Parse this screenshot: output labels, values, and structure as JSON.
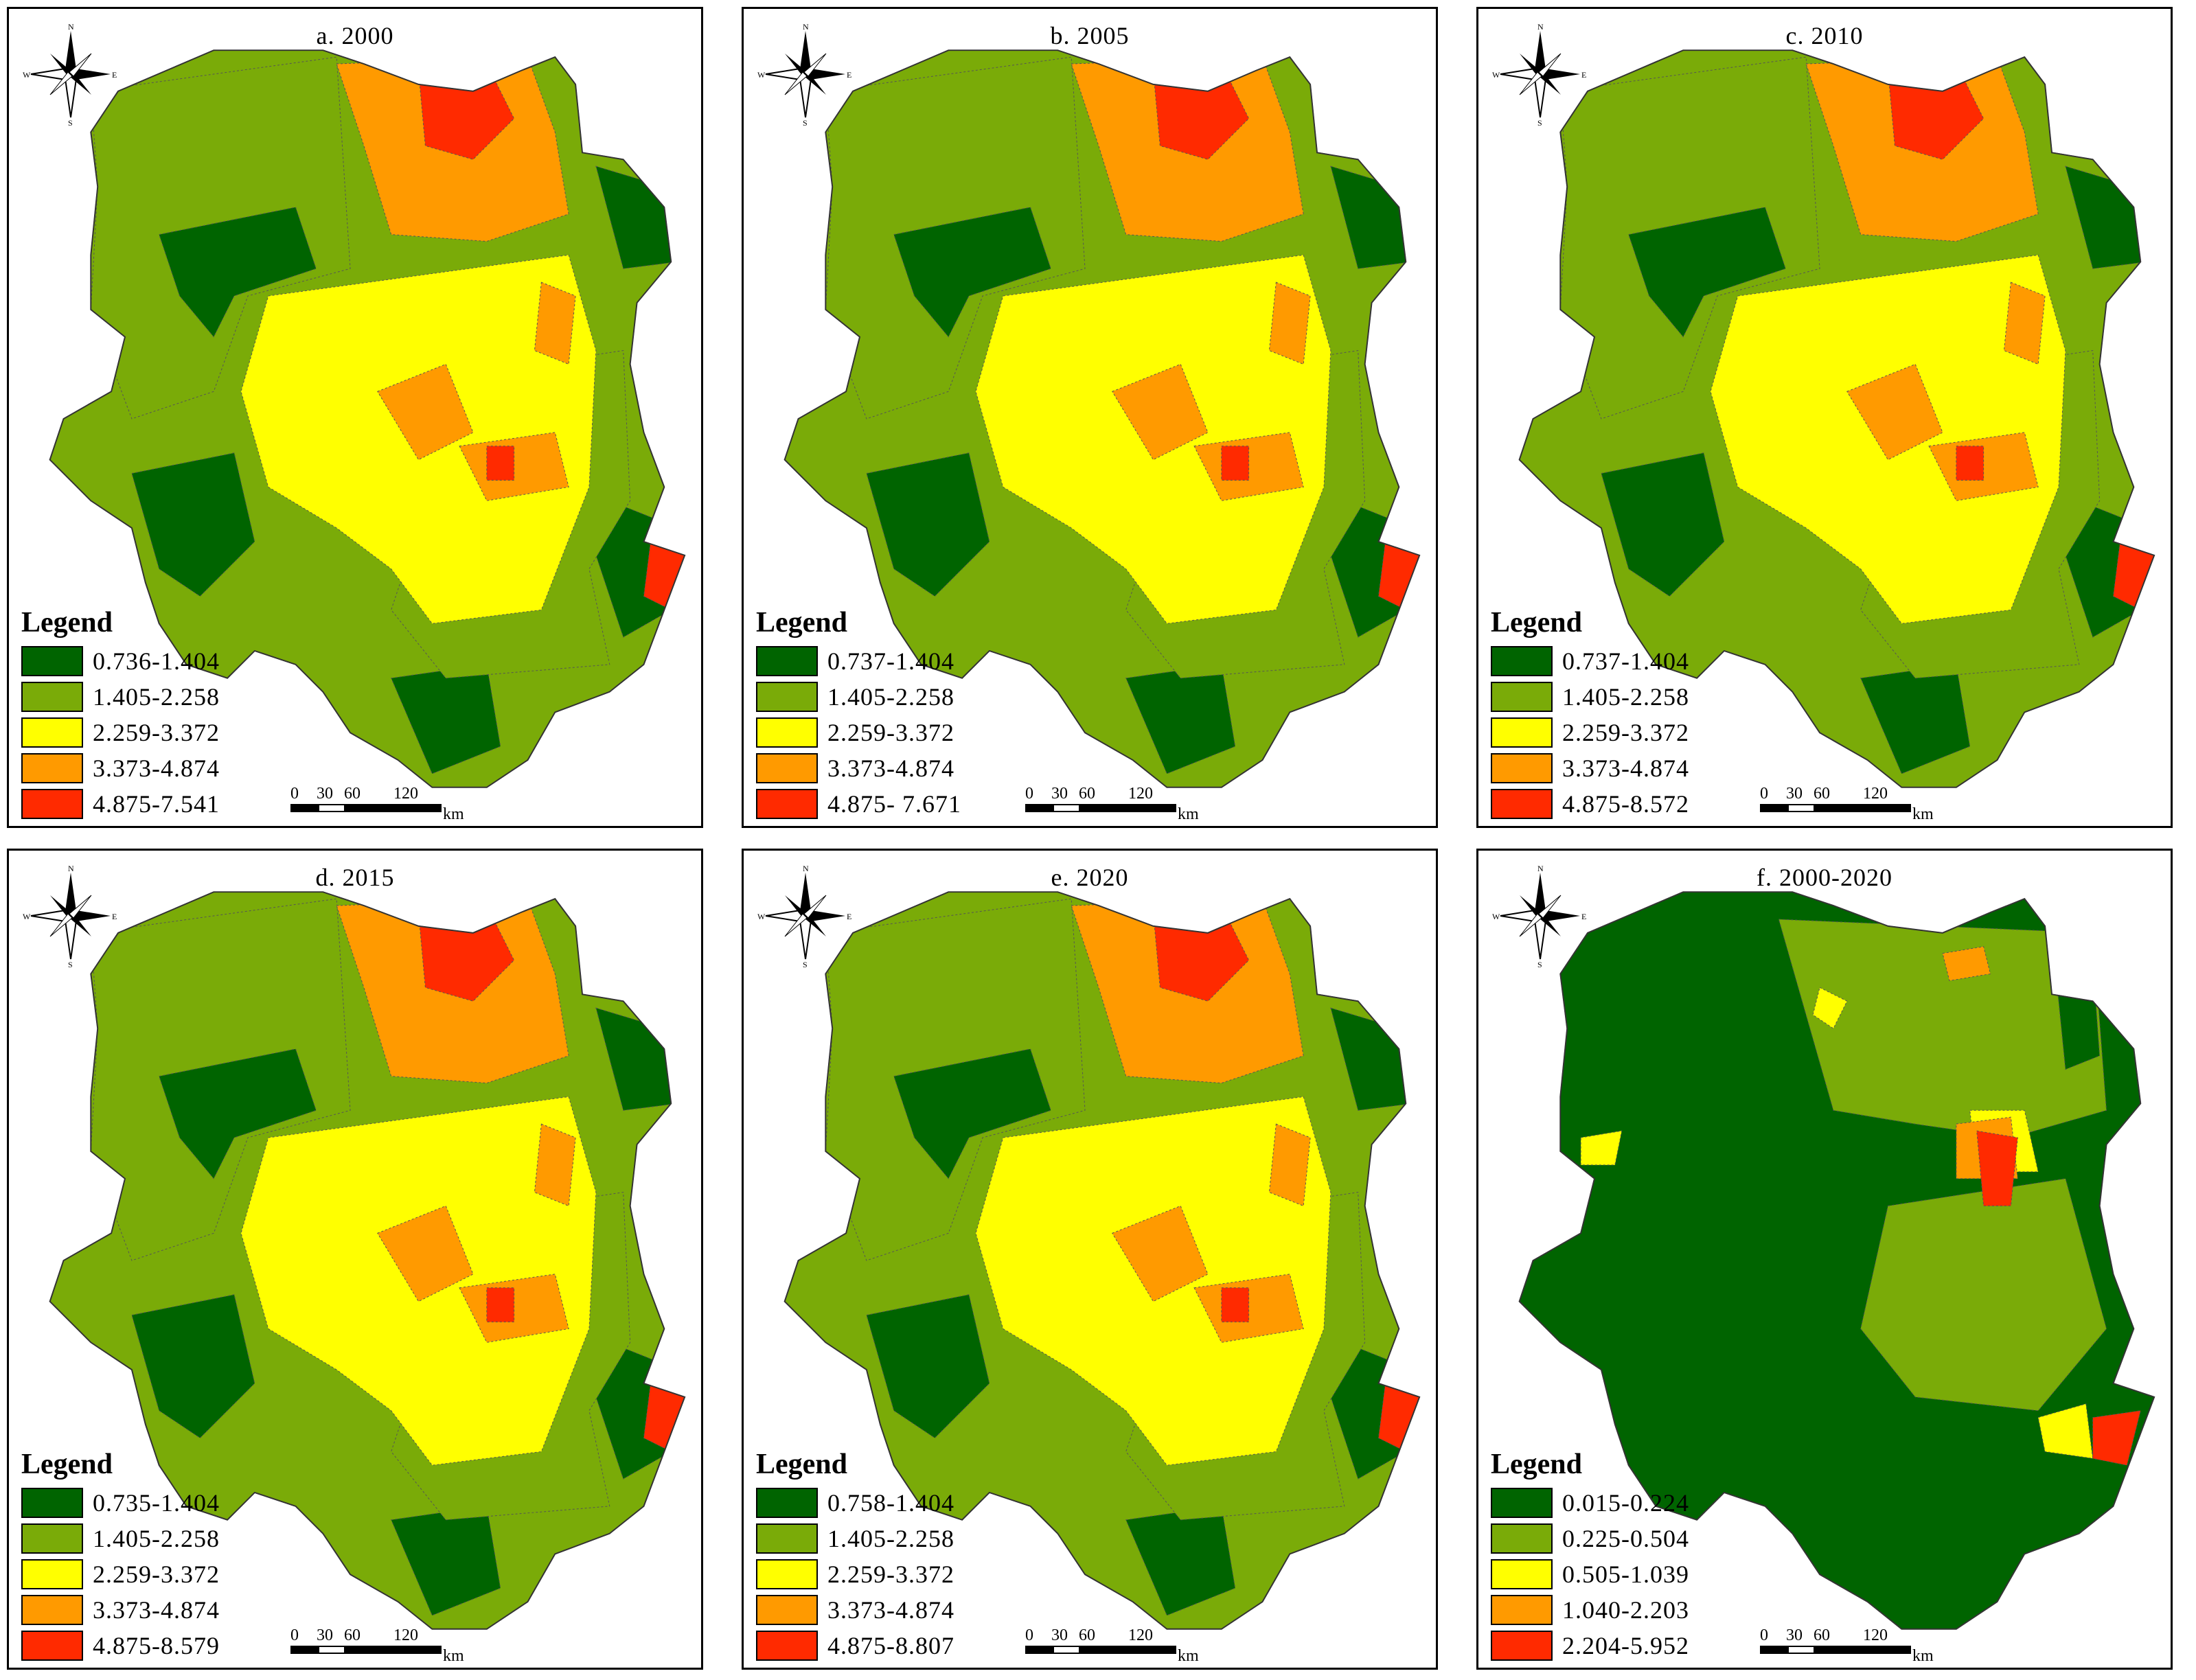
{
  "legend_title": "Legend",
  "scale": {
    "ticks": [
      "0",
      "30",
      "60",
      "120"
    ],
    "unit": "km"
  },
  "compass": {
    "n": "N",
    "s": "S",
    "e": "E",
    "w": "W"
  },
  "panels": [
    {
      "title": "a. 2000",
      "palette": "density",
      "classes": [
        "0.736-1.404",
        "1.405-2.258",
        "2.259-3.372",
        "3.373-4.874",
        "4.875-7.541"
      ]
    },
    {
      "title": "b. 2005",
      "palette": "density",
      "classes": [
        "0.737-1.404",
        "1.405-2.258",
        "2.259-3.372",
        "3.373-4.874",
        "4.875- 7.671"
      ]
    },
    {
      "title": "c. 2010",
      "palette": "density",
      "classes": [
        "0.737-1.404",
        "1.405-2.258",
        "2.259-3.372",
        "3.373-4.874",
        "4.875-8.572"
      ]
    },
    {
      "title": "d. 2015",
      "palette": "density",
      "classes": [
        "0.735-1.404",
        "1.405-2.258",
        "2.259-3.372",
        "3.373-4.874",
        "4.875-8.579"
      ]
    },
    {
      "title": "e. 2020",
      "palette": "density",
      "classes": [
        "0.758-1.404",
        "1.405-2.258",
        "2.259-3.372",
        "3.373-4.874",
        "4.875-8.807"
      ]
    },
    {
      "title": "f. 2000-2020",
      "palette": "change",
      "classes": [
        "0.015-0.224",
        "0.225-0.504",
        "0.505-1.039",
        "1.040-2.203",
        "2.204-5.952"
      ]
    }
  ],
  "class_colors": [
    "#006400",
    "#7aab08",
    "#ffff00",
    "#ff9a00",
    "#ff2a00"
  ]
}
